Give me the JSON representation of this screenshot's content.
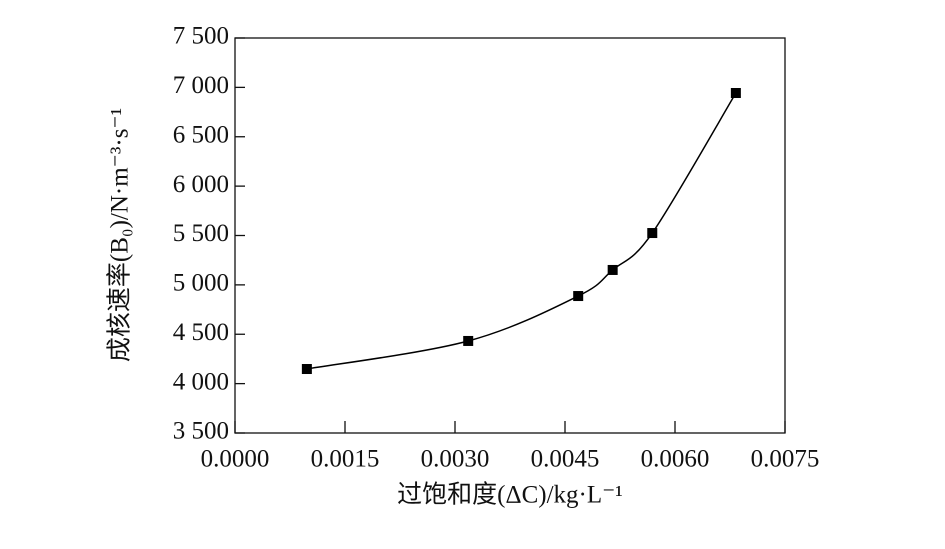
{
  "chart_data": {
    "type": "scatter",
    "x_label": "过饱和度(ΔC)/kg·L⁻¹",
    "y_label": "成核速率(B₀)/N·m⁻³·s⁻¹",
    "x": [
      0.00098,
      0.00318,
      0.00468,
      0.00515,
      0.00569,
      0.00683
    ],
    "y": [
      4148,
      4432,
      4887,
      5151,
      5525,
      6943
    ],
    "color": "#000000",
    "fit_line": true,
    "xlim": [
      0,
      0.0075
    ],
    "ylim": [
      3500,
      7500
    ],
    "xticks": [
      {
        "value": 0,
        "label": "0.0000"
      },
      {
        "value": 0.0015,
        "label": "0.0015"
      },
      {
        "value": 0.003,
        "label": "0.0030"
      },
      {
        "value": 0.0045,
        "label": "0.0045"
      },
      {
        "value": 0.006,
        "label": "0.0060"
      },
      {
        "value": 0.0075,
        "label": "0.0075"
      }
    ],
    "yticks": [
      {
        "value": 3500,
        "label": "3 500"
      },
      {
        "value": 4000,
        "label": "4 000"
      },
      {
        "value": 4500,
        "label": "4 500"
      },
      {
        "value": 5000,
        "label": "5 000"
      },
      {
        "value": 5500,
        "label": "5 500"
      },
      {
        "value": 6000,
        "label": "6 000"
      },
      {
        "value": 6500,
        "label": "6 500"
      },
      {
        "value": 7000,
        "label": "7 000"
      },
      {
        "value": 7500,
        "label": "7 500"
      }
    ]
  }
}
